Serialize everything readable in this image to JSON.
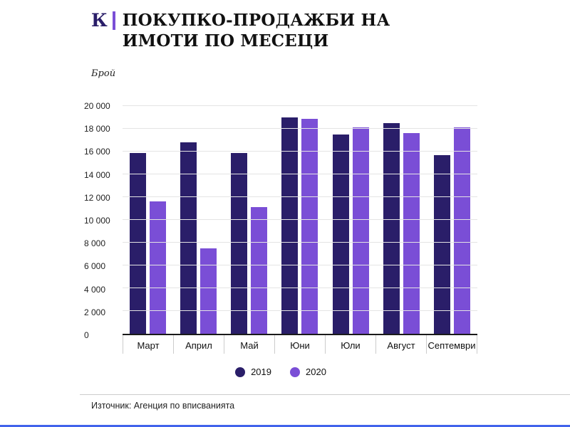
{
  "header": {
    "logo_letter": "К",
    "title": "ПОКУПКО-ПРОДАЖБИ НА ИМОТИ ПО МЕСЕЦИ"
  },
  "chart_data": {
    "type": "bar",
    "title": "ПОКУПКО-ПРОДАЖБИ НА ИМОТИ ПО МЕСЕЦИ",
    "ylabel": "Брой",
    "xlabel": "",
    "ylim": [
      0,
      20000
    ],
    "ytick_step": 2000,
    "ytick_labels": [
      "0",
      "2 000",
      "4 000",
      "6 000",
      "8 000",
      "10 000",
      "12 000",
      "14 000",
      "16 000",
      "18 000",
      "20 000"
    ],
    "categories": [
      "Март",
      "Април",
      "Май",
      "Юни",
      "Юли",
      "Август",
      "Септември"
    ],
    "series": [
      {
        "name": "2019",
        "color": "#2a1e69",
        "values": [
          15900,
          16800,
          15900,
          19000,
          17500,
          18500,
          15700
        ]
      },
      {
        "name": "2020",
        "color": "#7a4ed6",
        "values": [
          11600,
          7500,
          11100,
          18900,
          18100,
          17600,
          18100
        ]
      }
    ],
    "grid": true,
    "legend_position": "bottom"
  },
  "footer": {
    "source": "Източник: Агенция по вписванията"
  },
  "colors": {
    "series_2019": "#2a1e69",
    "series_2020": "#7a4ed6",
    "logo_bar": "#7a4ed6",
    "bottom_accent": "#4263eb"
  }
}
